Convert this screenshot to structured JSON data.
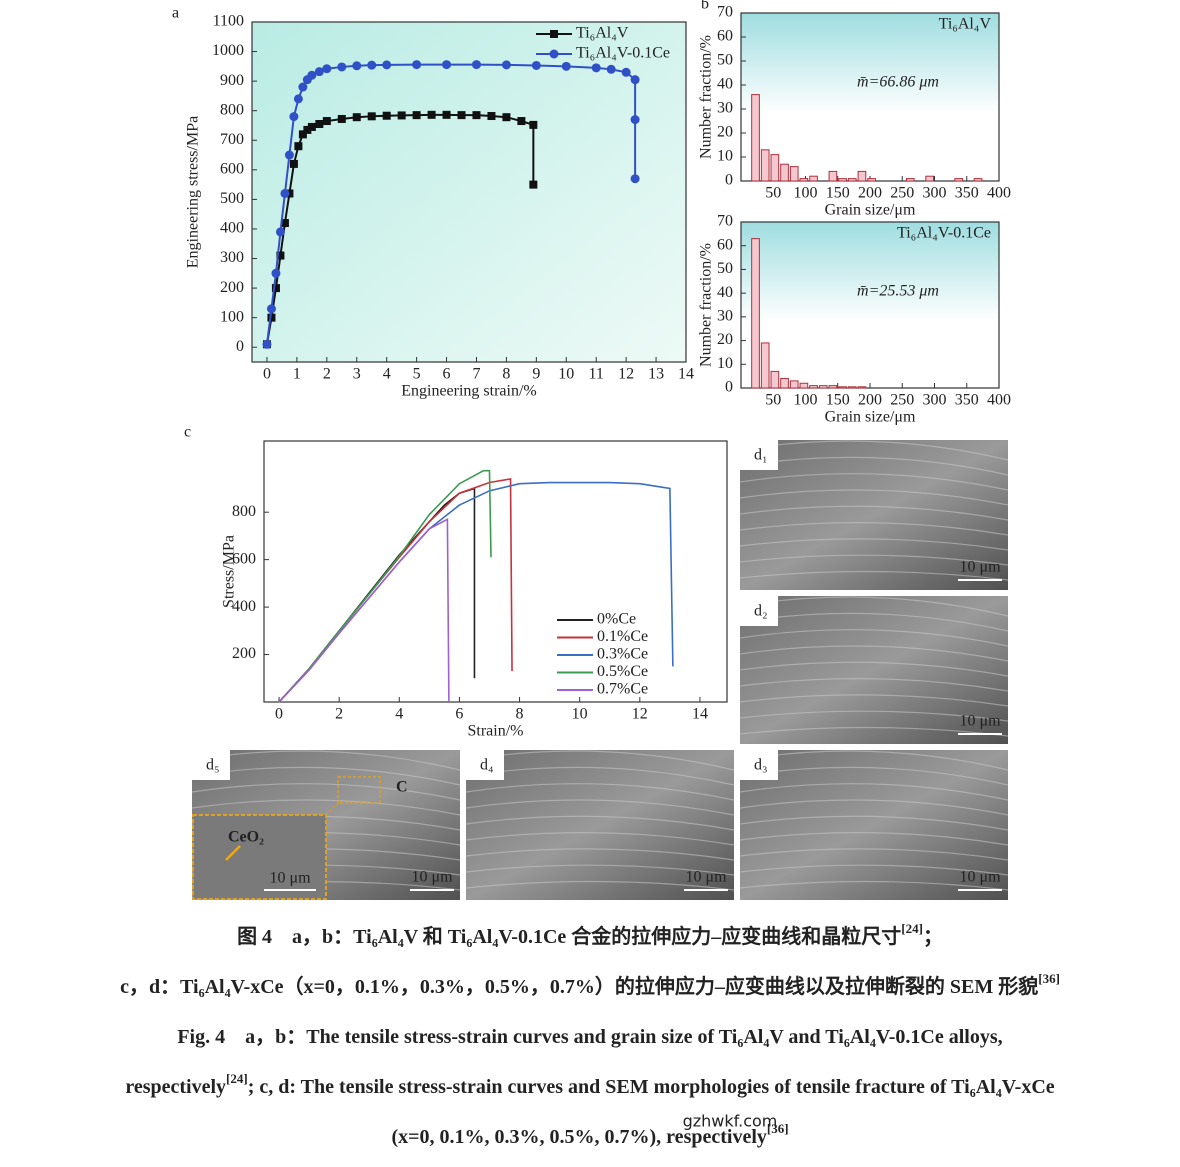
{
  "chart_data": [
    {
      "type": "line",
      "label": "a",
      "xlabel": "Engineering strain/%",
      "ylabel": "Engineering stress/MPa",
      "xlim": [
        -0.5,
        14
      ],
      "ylim": [
        -50,
        1100
      ],
      "xticks": [
        0,
        1,
        2,
        3,
        4,
        5,
        6,
        7,
        8,
        9,
        10,
        11,
        12,
        13,
        14
      ],
      "yticks": [
        0,
        100,
        200,
        300,
        400,
        500,
        600,
        700,
        800,
        900,
        1000,
        1100
      ],
      "legend": "upper right",
      "series": [
        {
          "name": "Ti₆Al₄V",
          "color": "#111111",
          "marker": "square",
          "x": [
            0,
            0.15,
            0.3,
            0.45,
            0.6,
            0.75,
            0.9,
            1.05,
            1.2,
            1.35,
            1.5,
            1.75,
            2,
            2.5,
            3,
            3.5,
            4,
            4.5,
            5,
            5.5,
            6,
            6.5,
            7,
            7.5,
            8,
            8.5,
            8.9,
            8.9
          ],
          "values": [
            10,
            100,
            200,
            310,
            420,
            520,
            620,
            680,
            720,
            735,
            745,
            755,
            765,
            772,
            778,
            781,
            783,
            784,
            785,
            786,
            786,
            785,
            785,
            782,
            778,
            765,
            752,
            550
          ]
        },
        {
          "name": "Ti₆Al₄V-0.1Ce",
          "color": "#3050c8",
          "marker": "circle",
          "x": [
            0,
            0.15,
            0.3,
            0.45,
            0.6,
            0.75,
            0.9,
            1.05,
            1.2,
            1.35,
            1.5,
            1.75,
            2,
            2.5,
            3,
            3.5,
            4,
            5,
            6,
            7,
            8,
            9,
            10,
            11,
            11.5,
            12,
            12.3,
            12.3,
            12.3
          ],
          "values": [
            10,
            130,
            250,
            390,
            520,
            650,
            780,
            840,
            880,
            905,
            920,
            932,
            942,
            948,
            952,
            954,
            955,
            956,
            956,
            956,
            955,
            953,
            950,
            945,
            940,
            930,
            905,
            770,
            570
          ]
        }
      ]
    },
    {
      "type": "histogram",
      "label": "b",
      "title": "Ti₆Al₄V",
      "annotation": "m̄=66.86 μm",
      "xlabel": "Grain size/μm",
      "ylabel": "Number fraction/%",
      "xlim": [
        0,
        400
      ],
      "ylim": [
        0,
        70
      ],
      "xticks": [
        50,
        100,
        150,
        200,
        250,
        300,
        350,
        400
      ],
      "yticks": [
        0,
        10,
        20,
        30,
        40,
        50,
        60,
        70
      ],
      "color": "#f5c8cf",
      "edge": "#b0303c",
      "bins": [
        15,
        30,
        45,
        60,
        75,
        90,
        105,
        120,
        135,
        150,
        165,
        180,
        195,
        210,
        225,
        240,
        255,
        270,
        285,
        300,
        315,
        330,
        345,
        360,
        375,
        390
      ],
      "values": [
        36,
        13,
        11,
        7,
        6,
        1,
        2,
        0,
        4,
        1,
        1,
        4,
        1,
        0,
        0,
        0,
        1,
        0,
        2,
        0,
        0,
        1,
        0,
        1,
        0
      ]
    },
    {
      "type": "histogram",
      "title": "Ti₆Al₄V-0.1Ce",
      "annotation": "m̄=25.53 μm",
      "xlabel": "Grain size/μm",
      "ylabel": "Number fraction/%",
      "xlim": [
        0,
        400
      ],
      "ylim": [
        0,
        70
      ],
      "xticks": [
        50,
        100,
        150,
        200,
        250,
        300,
        350,
        400
      ],
      "yticks": [
        0,
        10,
        20,
        30,
        40,
        50,
        60,
        70
      ],
      "color": "#f5c8cf",
      "edge": "#b0303c",
      "bins": [
        15,
        30,
        45,
        60,
        75,
        90,
        105,
        120,
        135,
        150,
        165,
        180,
        195,
        210,
        225,
        240,
        255,
        270,
        285,
        300,
        315,
        330,
        345,
        360,
        375,
        390
      ],
      "values": [
        63,
        19,
        7,
        4,
        3,
        2,
        1,
        1,
        1,
        0.5,
        0.5,
        0.5,
        0,
        0,
        0,
        0,
        0,
        0,
        0,
        0,
        0,
        0,
        0,
        0,
        0
      ]
    },
    {
      "type": "line",
      "label": "c",
      "xlabel": "Strain/%",
      "ylabel": "Stress/MPa",
      "xlim": [
        -0.5,
        14.9
      ],
      "ylim": [
        0,
        1100
      ],
      "xticks": [
        0,
        2,
        4,
        6,
        8,
        10,
        12,
        14
      ],
      "yticks": [
        200,
        400,
        600,
        800
      ],
      "legend": "lower right",
      "series": [
        {
          "name": "0%Ce",
          "color": "#222222",
          "x": [
            0,
            1,
            2,
            3,
            4,
            5,
            5.5,
            6,
            6.5,
            6.5
          ],
          "values": [
            0,
            140,
            300,
            460,
            620,
            760,
            830,
            880,
            900,
            100
          ]
        },
        {
          "name": "0.1%Ce",
          "color": "#c8323c",
          "x": [
            0,
            1,
            2,
            3,
            4,
            5,
            6,
            7,
            7.7,
            7.75
          ],
          "values": [
            0,
            140,
            300,
            455,
            610,
            760,
            880,
            925,
            940,
            130
          ]
        },
        {
          "name": "0.3%Ce",
          "color": "#3a6fc4",
          "x": [
            0,
            1,
            2,
            3,
            4,
            5,
            6,
            7,
            8,
            9,
            11,
            12,
            13,
            13.1
          ],
          "values": [
            0,
            135,
            290,
            440,
            590,
            730,
            830,
            890,
            920,
            925,
            925,
            920,
            900,
            150
          ]
        },
        {
          "name": "0.5%Ce",
          "color": "#3a9a50",
          "x": [
            0,
            1,
            2,
            3,
            4,
            5,
            6,
            6.8,
            7,
            7.05
          ],
          "values": [
            0,
            140,
            300,
            455,
            615,
            790,
            920,
            975,
            975,
            610
          ]
        },
        {
          "name": "0.7%Ce",
          "color": "#a060d0",
          "x": [
            0,
            1,
            2,
            3,
            4,
            5,
            5.6,
            5.65
          ],
          "values": [
            0,
            135,
            290,
            440,
            590,
            730,
            770,
            0
          ]
        }
      ]
    }
  ],
  "images": [
    {
      "label": "d₁",
      "scale": "10 μm"
    },
    {
      "label": "d₂",
      "scale": "10 μm"
    },
    {
      "label": "d₃",
      "scale": "10 μm"
    },
    {
      "label": "d₄",
      "scale": "10 μm"
    },
    {
      "label": "d₅",
      "scale": "10 μm",
      "marker": "C",
      "inset_label": "CeO₂",
      "inset_scale": "10 μm"
    }
  ],
  "caption": [
    [
      {
        "text": "图 4　a，b：Ti₆Al₄V 和 Ti₆Al₄V-0.1Ce 合金的拉伸应力–应变曲线和晶粒尺寸"
      },
      {
        "sup": "[24]"
      },
      {
        "text": "；"
      }
    ],
    [
      {
        "text": "c，d：Ti₆Al₄V-xCe（x=0，0.1%，0.3%，0.5%，0.7%）的拉伸应力–应变曲线以及拉伸断裂的 SEM 形貌"
      },
      {
        "sup": "[36]"
      }
    ],
    [
      {
        "text": "Fig. 4　a，b：The tensile stress-strain curves and grain size of Ti₆Al₄V and Ti₆Al₄V-0.1Ce alloys,"
      }
    ],
    [
      {
        "text": "respectively"
      },
      {
        "sup": "[24]"
      },
      {
        "text": "; c, d: The tensile stress-strain curves and SEM morphologies of tensile fracture of Ti₆Al₄V-xCe"
      }
    ],
    [
      {
        "text": "(x=0, 0.1%, 0.3%, 0.5%, 0.7%), respectively"
      },
      {
        "sup": "[36]"
      }
    ]
  ],
  "watermark": "gzhwkf.com"
}
